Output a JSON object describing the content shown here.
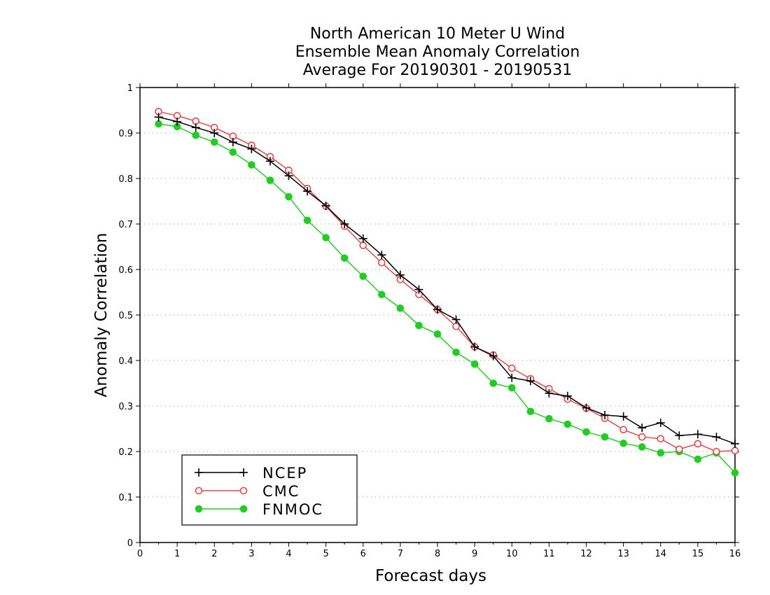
{
  "chart_data": {
    "type": "line",
    "title_lines": [
      "North American 10 Meter U Wind",
      "Ensemble Mean Anomaly Correlation",
      "Average For 20190301 - 20190531"
    ],
    "xlabel": "Forecast days",
    "ylabel": "Anomaly Correlation",
    "xlim": [
      0,
      16
    ],
    "ylim": [
      0,
      1
    ],
    "xticks": [
      "0",
      "1",
      "2",
      "3",
      "4",
      "5",
      "6",
      "7",
      "8",
      "9",
      "10",
      "11",
      "12",
      "13",
      "14",
      "15",
      "16"
    ],
    "yticks": [
      "0",
      "0.1",
      "0.2",
      "0.3",
      "0.4",
      "0.5",
      "0.6",
      "0.7",
      "0.8",
      "0.9",
      "1"
    ],
    "grid": "horizontal dotted",
    "legend_position": "bottom-left",
    "x": [
      0.5,
      1,
      1.5,
      2,
      2.5,
      3,
      3.5,
      4,
      4.5,
      5,
      5.5,
      6,
      6.5,
      7,
      7.5,
      8,
      8.5,
      9,
      9.5,
      10,
      10.5,
      11,
      11.5,
      12,
      12.5,
      13,
      13.5,
      14,
      14.5,
      15,
      15.5,
      16
    ],
    "series": [
      {
        "name": "NCEP",
        "color": "#000000",
        "marker": "plus",
        "values": [
          0.935,
          0.925,
          0.912,
          0.9,
          0.88,
          0.865,
          0.838,
          0.806,
          0.772,
          0.74,
          0.7,
          0.668,
          0.632,
          0.588,
          0.556,
          0.512,
          0.49,
          0.43,
          0.41,
          0.362,
          0.355,
          0.328,
          0.322,
          0.296,
          0.28,
          0.277,
          0.252,
          0.263,
          0.235,
          0.238,
          0.232,
          0.217
        ]
      },
      {
        "name": "CMC",
        "color": "#e0474c",
        "marker": "open-circle",
        "values": [
          0.947,
          0.938,
          0.926,
          0.912,
          0.893,
          0.873,
          0.848,
          0.818,
          0.778,
          0.739,
          0.695,
          0.653,
          0.615,
          0.578,
          0.545,
          0.512,
          0.475,
          0.43,
          0.412,
          0.383,
          0.36,
          0.338,
          0.315,
          0.295,
          0.273,
          0.248,
          0.232,
          0.228,
          0.205,
          0.217,
          0.2,
          0.202
        ]
      },
      {
        "name": "FNMOC",
        "color": "#22cc22",
        "marker": "filled-circle",
        "values": [
          0.92,
          0.914,
          0.895,
          0.88,
          0.858,
          0.83,
          0.796,
          0.76,
          0.708,
          0.67,
          0.625,
          0.585,
          0.545,
          0.515,
          0.477,
          0.458,
          0.418,
          0.392,
          0.35,
          0.34,
          0.288,
          0.272,
          0.26,
          0.243,
          0.232,
          0.218,
          0.21,
          0.197,
          0.2,
          0.183,
          0.197,
          0.153
        ]
      }
    ]
  }
}
